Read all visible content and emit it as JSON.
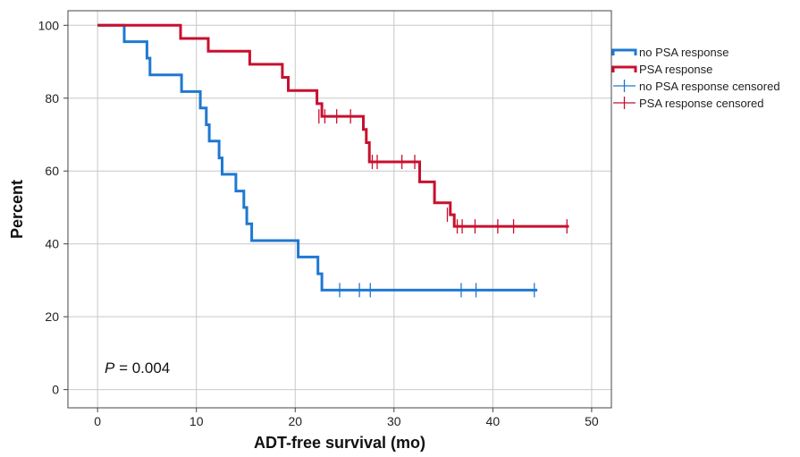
{
  "chart_data": {
    "type": "line",
    "xlabel": "ADT-free survival (mo)",
    "ylabel": "Percent",
    "xlim": [
      -3,
      52
    ],
    "ylim": [
      -5,
      104
    ],
    "xticks": [
      0,
      10,
      20,
      30,
      40,
      50
    ],
    "yticks": [
      0,
      20,
      40,
      60,
      80,
      100
    ],
    "grid": true,
    "legend_position": "right",
    "annotation": {
      "italic": "P",
      "text": " = 0.004"
    },
    "series": [
      {
        "name": "no PSA response",
        "color": "#1f78d1",
        "steps": [
          [
            0,
            100
          ],
          [
            2.7,
            100
          ],
          [
            2.7,
            95.5
          ],
          [
            5,
            95.5
          ],
          [
            5,
            91
          ],
          [
            5.3,
            91
          ],
          [
            5.3,
            86.4
          ],
          [
            8.5,
            86.4
          ],
          [
            8.5,
            81.8
          ],
          [
            10.4,
            81.8
          ],
          [
            10.4,
            77.3
          ],
          [
            11,
            77.3
          ],
          [
            11,
            72.7
          ],
          [
            11.3,
            72.7
          ],
          [
            11.3,
            68.2
          ],
          [
            12.3,
            68.2
          ],
          [
            12.3,
            63.6
          ],
          [
            12.6,
            63.6
          ],
          [
            12.6,
            59.1
          ],
          [
            14,
            59.1
          ],
          [
            14,
            54.5
          ],
          [
            14.8,
            54.5
          ],
          [
            14.8,
            50
          ],
          [
            15.1,
            50
          ],
          [
            15.1,
            45.5
          ],
          [
            15.6,
            45.5
          ],
          [
            15.6,
            40.9
          ],
          [
            20.3,
            40.9
          ],
          [
            20.3,
            36.4
          ],
          [
            22.3,
            36.4
          ],
          [
            22.3,
            31.8
          ],
          [
            22.7,
            31.8
          ],
          [
            22.7,
            27.3
          ],
          [
            44.5,
            27.3
          ]
        ],
        "censored": [
          [
            24.5,
            27.3
          ],
          [
            26.5,
            27.3
          ],
          [
            27.6,
            27.3
          ],
          [
            36.8,
            27.3
          ],
          [
            38.3,
            27.3
          ],
          [
            44.2,
            27.3
          ]
        ]
      },
      {
        "name": "PSA response",
        "color": "#c8102e",
        "steps": [
          [
            0,
            100
          ],
          [
            8.4,
            100
          ],
          [
            8.4,
            96.4
          ],
          [
            11.2,
            96.4
          ],
          [
            11.2,
            92.9
          ],
          [
            15.4,
            92.9
          ],
          [
            15.4,
            89.3
          ],
          [
            18.7,
            89.3
          ],
          [
            18.7,
            85.7
          ],
          [
            19.3,
            85.7
          ],
          [
            19.3,
            82.1
          ],
          [
            22.2,
            82.1
          ],
          [
            22.2,
            78.5
          ],
          [
            22.7,
            78.5
          ],
          [
            22.7,
            75
          ],
          [
            26.9,
            75
          ],
          [
            26.9,
            71.4
          ],
          [
            27.2,
            71.4
          ],
          [
            27.2,
            67.8
          ],
          [
            27.5,
            67.8
          ],
          [
            27.5,
            62.5
          ],
          [
            32.6,
            62.5
          ],
          [
            32.6,
            57
          ],
          [
            34.1,
            57
          ],
          [
            34.1,
            51.3
          ],
          [
            35.7,
            51.3
          ],
          [
            35.7,
            48
          ],
          [
            36.1,
            48
          ],
          [
            36.1,
            44.8
          ],
          [
            47.7,
            44.8
          ]
        ],
        "censored": [
          [
            22.4,
            75
          ],
          [
            23,
            75
          ],
          [
            24.2,
            75
          ],
          [
            25.6,
            75
          ],
          [
            27.8,
            62.5
          ],
          [
            28.3,
            62.5
          ],
          [
            30.8,
            62.5
          ],
          [
            32.1,
            62.5
          ],
          [
            35.4,
            48
          ],
          [
            36.4,
            44.8
          ],
          [
            36.9,
            44.8
          ],
          [
            38.2,
            44.8
          ],
          [
            40.5,
            44.8
          ],
          [
            42.1,
            44.8
          ],
          [
            47.5,
            44.8
          ]
        ]
      }
    ],
    "legend": [
      {
        "label": "no PSA response",
        "kind": "step",
        "color": "#1f78d1"
      },
      {
        "label": "PSA response",
        "kind": "step",
        "color": "#c8102e"
      },
      {
        "label": "no PSA response censored",
        "kind": "tick",
        "color": "#1f78d1"
      },
      {
        "label": "PSA response censored",
        "kind": "tick",
        "color": "#c8102e"
      }
    ]
  }
}
